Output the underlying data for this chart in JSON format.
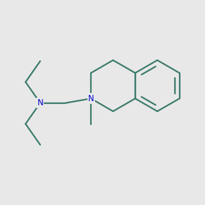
{
  "background_color": "#e8e8e8",
  "bond_color": "#3a7a6a",
  "nitrogen_color": "#0000cc",
  "line_width": 1.6,
  "font_size": 8.5,
  "figsize": [
    3.0,
    3.0
  ],
  "dpi": 100
}
